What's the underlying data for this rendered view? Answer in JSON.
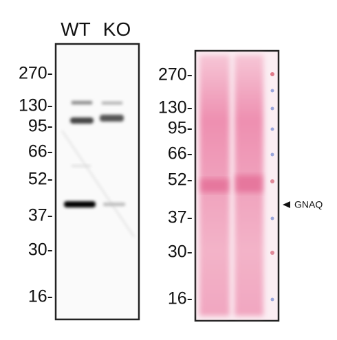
{
  "lanes": [
    "WT",
    "KO"
  ],
  "left_markers": [
    "270-",
    "130-",
    "95-",
    "66-",
    "52-",
    "37-",
    "30-",
    "16-"
  ],
  "right_markers": [
    "270-",
    "130-",
    "95-",
    "66-",
    "52-",
    "37-",
    "30-",
    "16-"
  ],
  "annotation": "GNAQ"
}
